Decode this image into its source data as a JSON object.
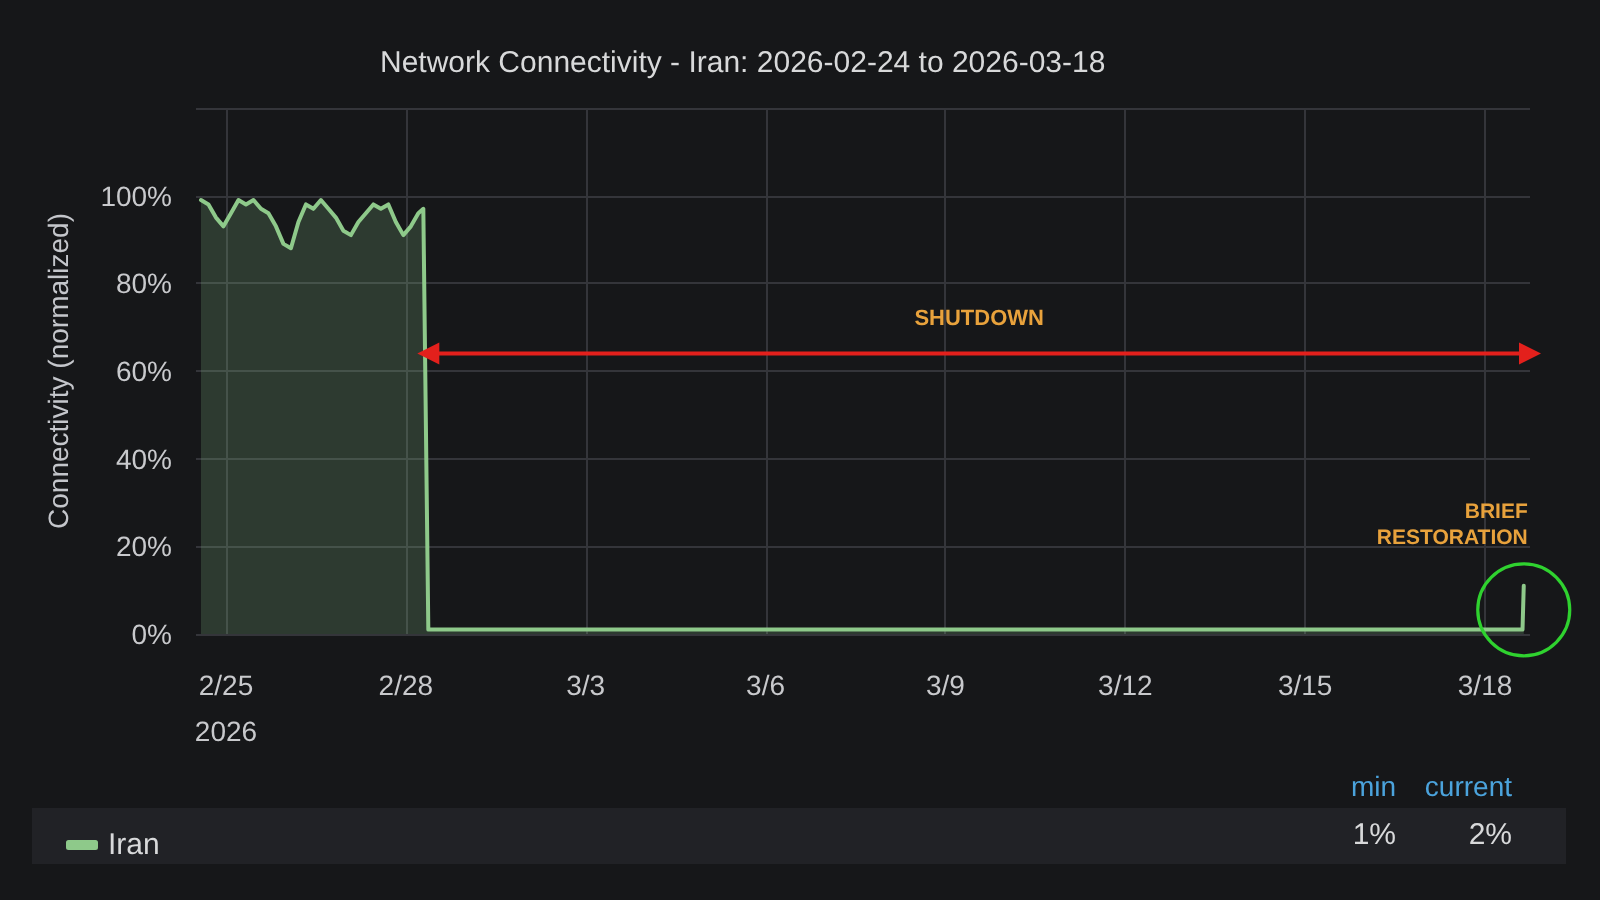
{
  "chart_data": {
    "type": "area",
    "title": "Network Connectivity - Iran: 2026-02-24 to 2026-03-18",
    "ylabel": "Connectivity (normalized)",
    "x": [
      "2026-02-24T14:00",
      "2026-02-24T17:00",
      "2026-02-24T20:00",
      "2026-02-24T23:00",
      "2026-02-25T02:00",
      "2026-02-25T05:00",
      "2026-02-25T08:00",
      "2026-02-25T11:00",
      "2026-02-25T14:00",
      "2026-02-25T17:00",
      "2026-02-25T20:00",
      "2026-02-25T23:00",
      "2026-02-26T02:00",
      "2026-02-26T05:00",
      "2026-02-26T08:00",
      "2026-02-26T11:00",
      "2026-02-26T14:00",
      "2026-02-26T17:00",
      "2026-02-26T20:00",
      "2026-02-26T23:00",
      "2026-02-27T02:00",
      "2026-02-27T05:00",
      "2026-02-27T08:00",
      "2026-02-27T11:00",
      "2026-02-27T14:00",
      "2026-02-27T17:00",
      "2026-02-27T20:00",
      "2026-02-27T23:00",
      "2026-02-28T02:00",
      "2026-02-28T05:00",
      "2026-02-28T07:00",
      "2026-02-28T09:00",
      "2026-03-02",
      "2026-03-05",
      "2026-03-08",
      "2026-03-11",
      "2026-03-14",
      "2026-03-15T06:00",
      "2026-03-17",
      "2026-03-18T15:00",
      "2026-03-18T15:30"
    ],
    "series": [
      {
        "name": "Iran",
        "color": "#8ec98a",
        "values": [
          99,
          98,
          95,
          93,
          96,
          99,
          98,
          99,
          97,
          96,
          93,
          89,
          88,
          94,
          98,
          97,
          99,
          97,
          95,
          92,
          91,
          94,
          96,
          98,
          97,
          98,
          94,
          91,
          93,
          96,
          97,
          1,
          1,
          1,
          1,
          1,
          1,
          1,
          1,
          1,
          11
        ]
      },
      {
        "type": "line",
        "color": "#e3201c",
        "marker": "triangle",
        "x": [
          "2026-02-28T09:00",
          "2026-03-18T18:00"
        ],
        "values": [
          64,
          64
        ]
      }
    ],
    "xlim": [
      "2026-02-24T12:00",
      "2026-03-18T18:00"
    ],
    "xticks": [
      {
        "value": "2026-02-25",
        "label": "2/25\n2026"
      },
      {
        "value": "2026-02-28",
        "label": "2/28"
      },
      {
        "value": "2026-03-03",
        "label": "3/3"
      },
      {
        "value": "2026-03-06",
        "label": "3/6"
      },
      {
        "value": "2026-03-09",
        "label": "3/9"
      },
      {
        "value": "2026-03-12",
        "label": "3/12"
      },
      {
        "value": "2026-03-15",
        "label": "3/15"
      },
      {
        "value": "2026-03-18",
        "label": "3/18"
      }
    ],
    "ylim": [
      0,
      120
    ],
    "yticks": [
      {
        "value": 0,
        "label": "0%"
      },
      {
        "value": 20,
        "label": "20%"
      },
      {
        "value": 40,
        "label": "40%"
      },
      {
        "value": 60,
        "label": "60%"
      },
      {
        "value": 80,
        "label": "80%"
      },
      {
        "value": 100,
        "label": "100%"
      },
      {
        "value": 120,
        "label": null
      }
    ],
    "grid": true,
    "legend": "bottom left",
    "annotations": [
      {
        "text": "SHUTDOWN",
        "x": "2026-03-09T13:30",
        "y": 64
      },
      {
        "text": "BRIEF RESTORATION",
        "x": "2026-03-18T15:30",
        "y": 11
      },
      "min",
      "current",
      "1%",
      "2%"
    ]
  }
}
